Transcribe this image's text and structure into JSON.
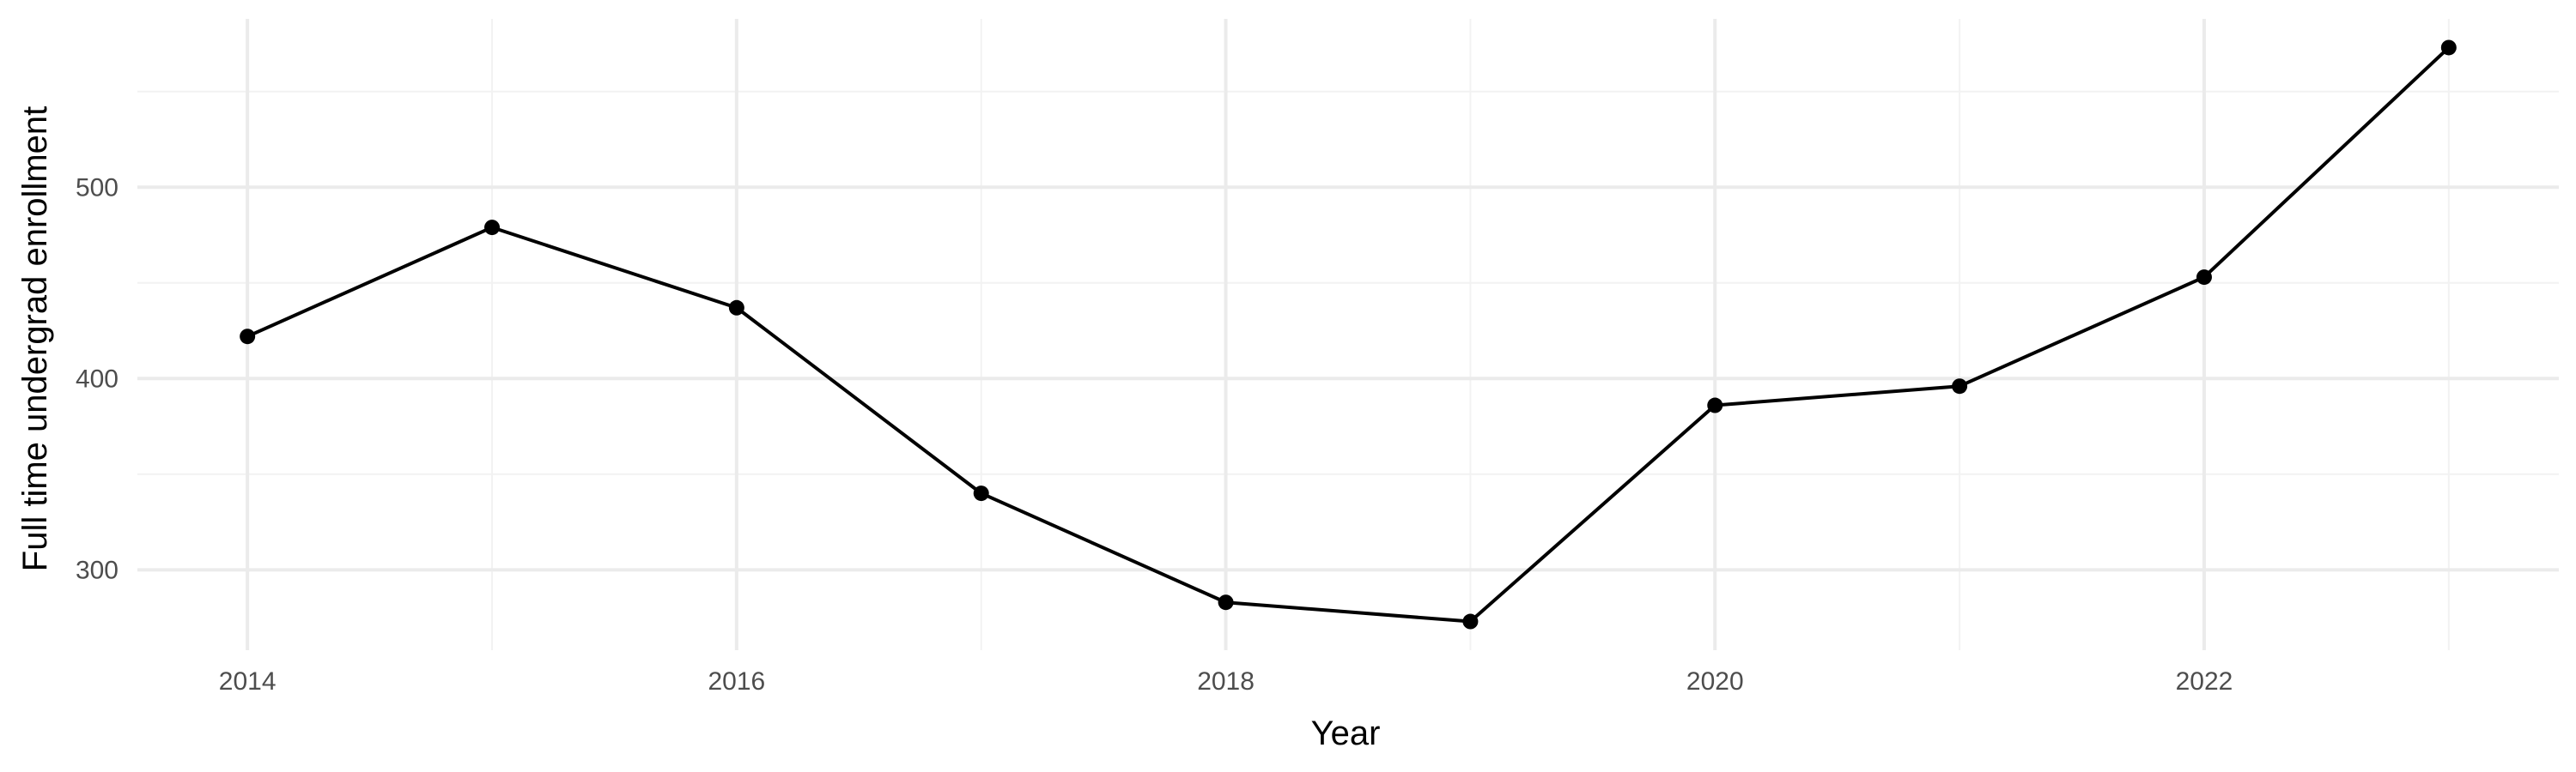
{
  "chart_data": {
    "type": "line",
    "title": "",
    "xlabel": "Year",
    "ylabel": "Full time undergrad enrollment",
    "x": [
      2014,
      2015,
      2016,
      2017,
      2018,
      2019,
      2020,
      2021,
      2022,
      2023
    ],
    "series": [
      {
        "values": [
          422,
          479,
          437,
          340,
          283,
          273,
          386,
          396,
          453,
          573
        ]
      }
    ],
    "x_ticks": [
      2014,
      2016,
      2018,
      2020,
      2022
    ],
    "x_tick_labels": [
      "2014",
      "2016",
      "2018",
      "2020",
      "2022"
    ],
    "y_ticks": [
      300,
      400,
      500
    ],
    "y_tick_labels": [
      "300",
      "400",
      "500"
    ],
    "xlim": [
      2013.55,
      2023.45
    ],
    "ylim": [
      258,
      588
    ],
    "grid": true,
    "legend": "none",
    "colors": {
      "line": "#000000",
      "point": "#000000",
      "grid_major": "#ebebeb",
      "grid_minor": "#f2f2f2",
      "tick_text": "#4d4d4d",
      "background": "#ffffff"
    }
  }
}
